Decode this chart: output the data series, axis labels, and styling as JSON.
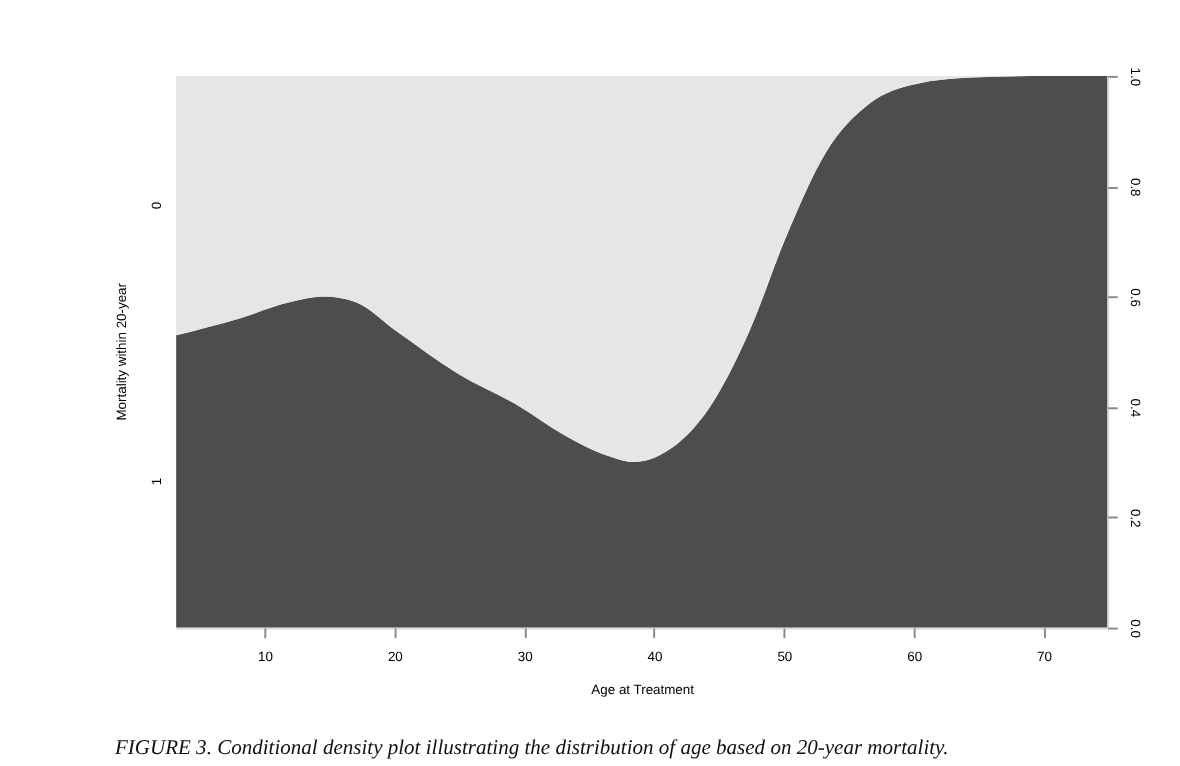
{
  "chart_data": {
    "type": "area",
    "stacked": true,
    "legend": false,
    "grid": false,
    "title": "FIGURE 3. Conditional density plot illustrating the distribution of age based on 20-year mortality.",
    "xlabel": "Age at Treatment",
    "ylabel": "Mortality within 20-year",
    "x": [
      3.2,
      8,
      12,
      14.6,
      17,
      20,
      24.9,
      29.7,
      33,
      36.6,
      38.4,
      41,
      44.3,
      47.3,
      50.2,
      53.2,
      56.6,
      60.1,
      64.5,
      70,
      74.9
    ],
    "series": [
      {
        "name": "1",
        "color": "#4d4d4d",
        "values": [
          0.53,
          0.56,
          0.59,
          0.6,
          0.59,
          0.54,
          0.46,
          0.4,
          0.35,
          0.31,
          0.3,
          0.32,
          0.4,
          0.535,
          0.71,
          0.86,
          0.95,
          0.985,
          0.997,
          1.0,
          1.0
        ]
      },
      {
        "name": "0",
        "color": "#e6e6e6",
        "values": [
          0.47,
          0.44,
          0.41,
          0.4,
          0.41,
          0.46,
          0.54,
          0.6,
          0.65,
          0.69,
          0.7,
          0.68,
          0.6,
          0.465,
          0.29,
          0.14,
          0.05,
          0.015,
          0.003,
          0.0,
          0.0
        ]
      }
    ],
    "xlim": [
      3.2,
      74.9
    ],
    "xticks": [
      10,
      20,
      30,
      40,
      50,
      60,
      70
    ],
    "ylim": [
      0,
      1
    ],
    "yticks": [
      {
        "value": 0,
        "label": "0.0"
      },
      0.2,
      0.4,
      0.6,
      0.8,
      {
        "value": 1,
        "label": "1.0"
      }
    ]
  }
}
